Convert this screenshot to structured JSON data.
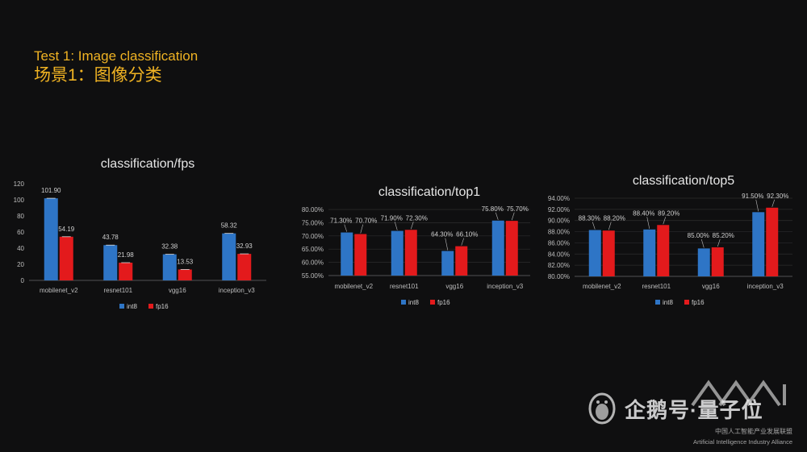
{
  "page": {
    "title_en": "Test 1: Image classification",
    "title_zh": "场景1：图像分类",
    "title_color": "#f0b323"
  },
  "colors": {
    "int8": "#2e75c6",
    "fp16": "#e31a1c",
    "background": "#0f0f10"
  },
  "watermark": {
    "brand": "企鹅号·量子位",
    "alliance_zh": "中国人工智能产业发展联盟",
    "alliance_en": "Artificial Intelligence Industry Alliance"
  },
  "chart_data": [
    {
      "type": "bar",
      "title": "classification/fps",
      "categories": [
        "mobilenet_v2",
        "resnet101",
        "vgg16",
        "inception_v3"
      ],
      "series": [
        {
          "name": "int8",
          "values": [
            101.9,
            43.78,
            32.38,
            58.32
          ],
          "labels": [
            "101.90",
            "43.78",
            "32.38",
            "58.32"
          ]
        },
        {
          "name": "fp16",
          "values": [
            54.19,
            21.98,
            13.53,
            32.93
          ],
          "labels": [
            "54.19",
            "21.98",
            "13.53",
            "32.93"
          ]
        }
      ],
      "ylim": [
        0,
        120
      ],
      "yticks": [
        0,
        20,
        40,
        60,
        80,
        100,
        120
      ],
      "ytick_labels": [
        "0",
        "20",
        "40",
        "60",
        "80",
        "100",
        "120"
      ],
      "error_bars": true,
      "legend": "bottom",
      "grid": false
    },
    {
      "type": "bar",
      "title": "classification/top1",
      "categories": [
        "mobilenet_v2",
        "resnet101",
        "vgg16",
        "inception_v3"
      ],
      "series": [
        {
          "name": "int8",
          "values": [
            71.3,
            71.9,
            64.3,
            75.8
          ],
          "labels": [
            "71.30%",
            "71.90%",
            "64.30%",
            "75.80%"
          ]
        },
        {
          "name": "fp16",
          "values": [
            70.7,
            72.3,
            66.1,
            75.7
          ],
          "labels": [
            "70.70%",
            "72.30%",
            "66.10%",
            "75.70%"
          ]
        }
      ],
      "ylim": [
        55,
        80
      ],
      "yticks": [
        55,
        60,
        65,
        70,
        75,
        80
      ],
      "ytick_labels": [
        "55.00%",
        "60.00%",
        "65.00%",
        "70.00%",
        "75.00%",
        "80.00%"
      ],
      "legend": "bottom",
      "grid": true
    },
    {
      "type": "bar",
      "title": "classification/top5",
      "categories": [
        "mobilenet_v2",
        "resnet101",
        "vgg16",
        "inception_v3"
      ],
      "series": [
        {
          "name": "int8",
          "values": [
            88.3,
            88.4,
            85.0,
            91.5
          ],
          "labels": [
            "88.30%",
            "88.40%",
            "85.00%",
            "91.50%"
          ]
        },
        {
          "name": "fp16",
          "values": [
            88.2,
            89.2,
            85.2,
            92.3
          ],
          "labels": [
            "88.20%",
            "89.20%",
            "85.20%",
            "92.30%"
          ]
        }
      ],
      "ylim": [
        80,
        94
      ],
      "yticks": [
        80,
        82,
        84,
        86,
        88,
        90,
        92,
        94
      ],
      "ytick_labels": [
        "80.00%",
        "82.00%",
        "84.00%",
        "86.00%",
        "88.00%",
        "90.00%",
        "92.00%",
        "94.00%"
      ],
      "legend": "bottom",
      "grid": true
    }
  ]
}
